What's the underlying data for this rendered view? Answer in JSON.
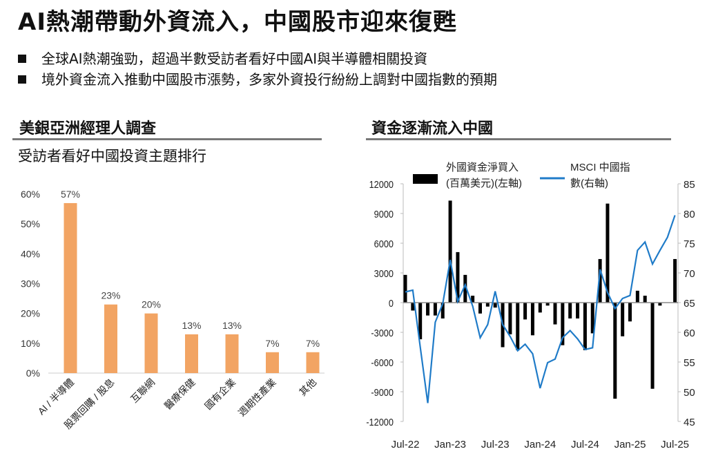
{
  "title": "AI熱潮帶動外資流入，中國股市迎來復甦",
  "bullets": [
    "全球AI熱潮強勁，超過半數受訪者看好中國AI與半導體相關投資",
    "境外資金流入推動中國股市漲勢，多家外資投行紛紛上調對中國指數的預期"
  ],
  "left_section": {
    "title": "美銀亞洲經理人調查",
    "subtitle": "受訪者看好中國投資主題排行"
  },
  "right_section": {
    "title": "資金逐漸流入中國"
  },
  "colors": {
    "bar": "#F2A463",
    "flow": "#000000",
    "msci": "#1F7BC8"
  },
  "chart_data": [
    {
      "type": "bar",
      "title": "受訪者看好中國投資主題排行",
      "categories": [
        "AI / 半導體",
        "股票回購 / 股息",
        "互聯網",
        "醫療保健",
        "國有企業",
        "週期性產業",
        "其他"
      ],
      "values": [
        57,
        23,
        20,
        13,
        13,
        7,
        7
      ],
      "data_labels": [
        "57%",
        "23%",
        "20%",
        "13%",
        "13%",
        "7%",
        "7%"
      ],
      "yticks": [
        "0%",
        "10%",
        "20%",
        "30%",
        "40%",
        "50%",
        "60%"
      ],
      "ylim": [
        0,
        60
      ]
    },
    {
      "type": "bar+line",
      "title": "資金逐漸流入中國",
      "x_ticks": [
        "Jul-22",
        "Jan-23",
        "Jul-23",
        "Jan-24",
        "Jul-24",
        "Jan-25",
        "Jul-25"
      ],
      "legend": [
        {
          "name": "外國資金淨買入",
          "name2": "(百萬美元)(左軸)"
        },
        {
          "name": "MSCI 中國指",
          "name2": "數(右軸)"
        }
      ],
      "left_ylim": [
        -12000,
        12000
      ],
      "left_ticks": [
        "12000",
        "9000",
        "6000",
        "3000",
        "0",
        "-3000",
        "-6000",
        "-9000",
        "-12000"
      ],
      "right_ylim": [
        45,
        85
      ],
      "right_ticks": [
        "85",
        "80",
        "75",
        "70",
        "65",
        "60",
        "55",
        "50",
        "45"
      ],
      "flows": [
        2800,
        -800,
        -3700,
        -1300,
        -1300,
        -1600,
        10300,
        5100,
        2800,
        700,
        -1100,
        -400,
        -500,
        -4500,
        -3200,
        -4800,
        -1700,
        -3300,
        -1000,
        -300,
        -2200,
        -4300,
        -1600,
        -1600,
        -4800,
        -3100,
        4400,
        10000,
        -9700,
        -3400,
        -1900,
        1200,
        700,
        -8700,
        -300,
        0,
        4400
      ],
      "msci": [
        66.8,
        67.1,
        57.5,
        48.1,
        61.7,
        64.8,
        72.2,
        65.2,
        68,
        64.4,
        59.1,
        61.3,
        66.9,
        61.3,
        59.3,
        56.9,
        58,
        56.4,
        50.6,
        54.9,
        55.5,
        59.1,
        60.3,
        58.9,
        57.1,
        57.4,
        70.6,
        66.7,
        64,
        65.7,
        66.2,
        73.8,
        75.2,
        71.5,
        73.8,
        76,
        79.7
      ]
    }
  ]
}
